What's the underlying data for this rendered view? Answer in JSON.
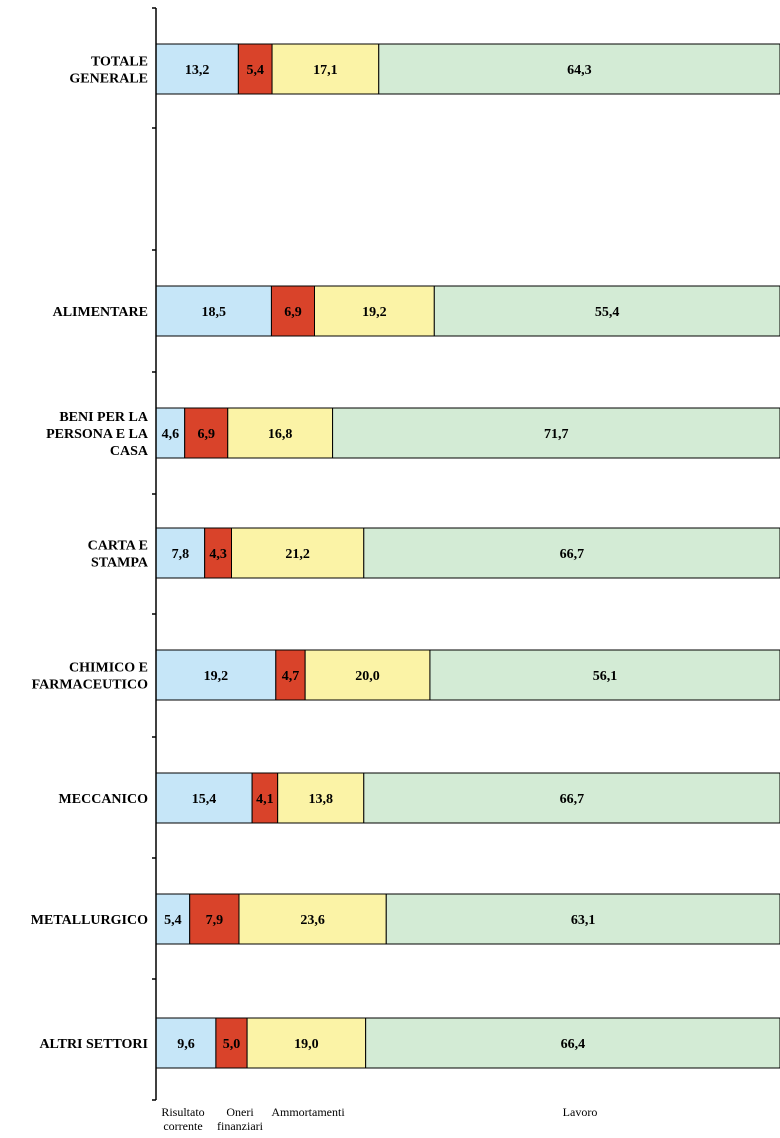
{
  "chart_data": {
    "type": "bar",
    "orientation": "horizontal",
    "stacked": true,
    "title": "",
    "xlabel": "",
    "ylabel": "",
    "xlim": [
      0,
      100
    ],
    "grid": false,
    "legend_position": "bottom",
    "categories": [
      [
        "TOTALE",
        "GENERALE"
      ],
      [
        "ALIMENTARE"
      ],
      [
        "BENI PER LA",
        "PERSONA E LA",
        "CASA"
      ],
      [
        "CARTA E",
        "STAMPA"
      ],
      [
        "CHIMICO E",
        "FARMACEUTICO"
      ],
      [
        "MECCANICO"
      ],
      [
        "METALLURGICO"
      ],
      [
        "ALTRI SETTORI"
      ]
    ],
    "series": [
      {
        "name": [
          "Risultato",
          "corrente"
        ],
        "color": "#c6e6f8",
        "values": [
          13.2,
          18.5,
          4.6,
          7.8,
          19.2,
          15.4,
          5.4,
          9.6
        ],
        "labels": [
          "13,2",
          "18,5",
          "4,6",
          "7,8",
          "19,2",
          "15,4",
          "5,4",
          "9,6"
        ]
      },
      {
        "name": [
          "Oneri",
          "finanziari"
        ],
        "color": "#d9432a",
        "values": [
          5.4,
          6.9,
          6.9,
          4.3,
          4.7,
          4.1,
          7.9,
          5.0
        ],
        "labels": [
          "5,4",
          "6,9",
          "6,9",
          "4,3",
          "4,7",
          "4,1",
          "7,9",
          "5,0"
        ]
      },
      {
        "name": [
          "Ammortamenti"
        ],
        "color": "#fbf3a6",
        "values": [
          17.1,
          19.2,
          16.8,
          21.2,
          20.0,
          13.8,
          23.6,
          19.0
        ],
        "labels": [
          "17,1",
          "19,2",
          "16,8",
          "21,2",
          "20,0",
          "13,8",
          "23,6",
          "19,0"
        ]
      },
      {
        "name": [
          "Lavoro"
        ],
        "color": "#d3ebd5",
        "values": [
          64.3,
          55.4,
          71.7,
          66.7,
          56.1,
          66.7,
          63.1,
          66.4
        ],
        "labels": [
          "64,3",
          "55,4",
          "71,7",
          "66,7",
          "56,1",
          "66,7",
          "63,1",
          "66,4"
        ]
      }
    ]
  }
}
